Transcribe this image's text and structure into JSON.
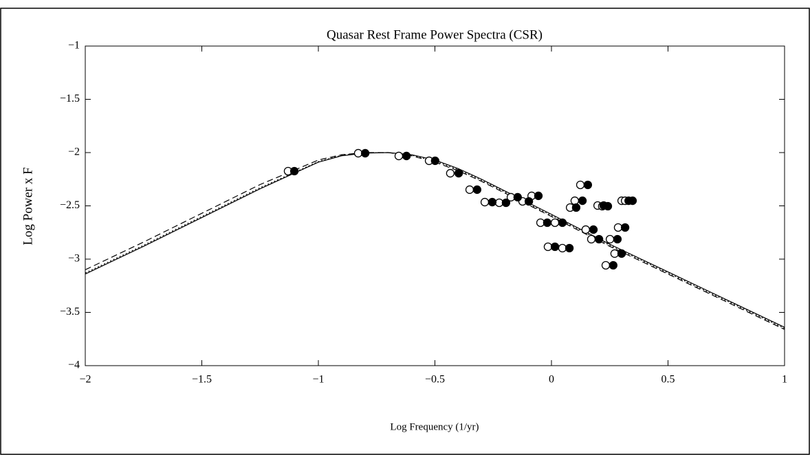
{
  "chart_data": {
    "type": "scatter",
    "title": "Quasar Rest Frame Power Spectra (CSR)",
    "x_label": "Log Frequency (1/yr)",
    "y_label": "Log Power x F",
    "xlim": [
      -2,
      1
    ],
    "ylim": [
      -4,
      -1
    ],
    "xticks": [
      {
        "value": -2,
        "label": "−2"
      },
      {
        "value": -1.5,
        "label": "−1.5"
      },
      {
        "value": -1,
        "label": "−1"
      },
      {
        "value": -0.5,
        "label": "−0.5"
      },
      0,
      0.5,
      1
    ],
    "yticks": [
      {
        "value": -4,
        "label": "−4"
      },
      {
        "value": -3.5,
        "label": "−3.5"
      },
      {
        "value": -3,
        "label": "−3"
      },
      {
        "value": -2.5,
        "label": "−2.5"
      },
      {
        "value": -2,
        "label": "−2"
      },
      {
        "value": -1.5,
        "label": "−1.5"
      },
      {
        "value": -1,
        "label": "−1"
      }
    ],
    "series": [
      {
        "marker": "open",
        "color": "#000000",
        "x": [
          -1.13,
          -0.829,
          -0.655,
          -0.525,
          -0.434,
          -0.351,
          -0.286,
          -0.224,
          -0.174,
          -0.124,
          -0.085,
          -0.047,
          0.015,
          -0.015,
          0.047,
          0.08,
          0.1,
          0.124,
          0.147,
          0.171,
          0.198,
          0.218,
          0.251,
          0.233,
          0.271,
          0.286,
          0.301,
          0.316
        ],
        "values": [
          -2.174,
          -2.006,
          -2.032,
          -2.077,
          -2.194,
          -2.348,
          -2.465,
          -2.471,
          -2.419,
          -2.458,
          -2.406,
          -2.658,
          -2.658,
          -2.884,
          -2.897,
          -2.516,
          -2.452,
          -2.303,
          -2.723,
          -2.813,
          -2.497,
          -2.503,
          -2.813,
          -3.058,
          -2.948,
          -2.703,
          -2.452,
          -2.452
        ]
      },
      {
        "marker": "filled",
        "color": "#000000",
        "x": [
          -1.103,
          -0.799,
          -0.622,
          -0.499,
          -0.398,
          -0.319,
          -0.254,
          -0.195,
          -0.145,
          -0.097,
          -0.056,
          -0.018,
          0.047,
          0.015,
          0.077,
          0.106,
          0.133,
          0.156,
          0.18,
          0.204,
          0.224,
          0.242,
          0.283,
          0.265,
          0.301,
          0.316,
          0.331,
          0.348
        ],
        "values": [
          -2.174,
          -2.006,
          -2.032,
          -2.077,
          -2.194,
          -2.348,
          -2.465,
          -2.471,
          -2.419,
          -2.458,
          -2.406,
          -2.658,
          -2.658,
          -2.884,
          -2.897,
          -2.516,
          -2.452,
          -2.303,
          -2.723,
          -2.813,
          -2.497,
          -2.503,
          -2.813,
          -3.058,
          -2.948,
          -2.703,
          -2.452,
          -2.452
        ]
      }
    ],
    "lines": [
      {
        "style": "solid",
        "color": "#000000",
        "x": [
          -2,
          -1.75,
          -1.5,
          -1.25,
          -1,
          -0.9,
          -0.8,
          -0.7,
          -0.6,
          -0.5,
          -0.4,
          -0.3,
          -0.2,
          -0.1,
          0,
          0.25,
          0.5,
          0.75,
          1
        ],
        "values": [
          -3.14,
          -2.88,
          -2.61,
          -2.34,
          -2.09,
          -2.03,
          -2.005,
          -2.0,
          -2.02,
          -2.07,
          -2.15,
          -2.25,
          -2.36,
          -2.47,
          -2.58,
          -2.86,
          -3.12,
          -3.38,
          -3.64
        ]
      },
      {
        "style": "dashed",
        "color": "#000000",
        "x": [
          -2,
          -1.75,
          -1.5,
          -1.25,
          -1,
          -0.9,
          -0.8,
          -0.7,
          -0.6,
          -0.5,
          -0.4,
          -0.3,
          -0.2,
          -0.1,
          0,
          0.25,
          0.5,
          0.75,
          1
        ],
        "values": [
          -3.1,
          -2.84,
          -2.57,
          -2.3,
          -2.07,
          -2.02,
          -2.0,
          -2.0,
          -2.03,
          -2.09,
          -2.17,
          -2.27,
          -2.38,
          -2.49,
          -2.6,
          -2.88,
          -3.14,
          -3.4,
          -3.66
        ]
      },
      {
        "style": "dotted",
        "color": "#000000",
        "x": [
          -2,
          -1.75,
          -1.5,
          -1.25,
          -1,
          -0.9,
          -0.8,
          -0.7,
          -0.6,
          -0.5,
          -0.4,
          -0.3,
          -0.2,
          -0.1,
          0,
          0.25,
          0.5,
          0.75,
          1
        ],
        "values": [
          -3.13,
          -2.87,
          -2.6,
          -2.33,
          -2.085,
          -2.025,
          -2.003,
          -2.0,
          -2.025,
          -2.08,
          -2.16,
          -2.26,
          -2.37,
          -2.48,
          -2.59,
          -2.87,
          -3.13,
          -3.39,
          -3.65
        ]
      }
    ]
  }
}
